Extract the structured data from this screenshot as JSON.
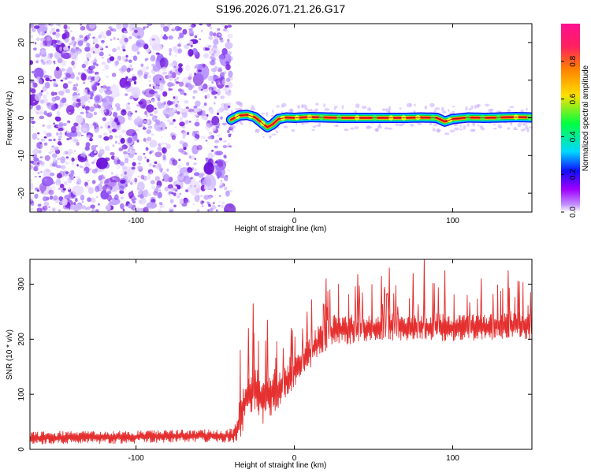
{
  "title": "S196.2026.071.21.26.G17",
  "colors": {
    "scatter_purple": "#7b1fe0",
    "red_trace": "#e53030",
    "colorbar_stops": [
      "#ffffff",
      "#a000ff",
      "#1010ff",
      "#00d8ff",
      "#00ff40",
      "#ffe000",
      "#ff8000",
      "#ff2060",
      "#ff1090"
    ]
  },
  "chart_data": [
    {
      "type": "heatmap",
      "title": "S196.2026.071.21.26.G17",
      "xlabel": "Height of straight line (km)",
      "ylabel": "Frequency (Hz)",
      "xlim": [
        -167,
        150
      ],
      "ylim": [
        -25,
        25
      ],
      "xticks": [
        -100,
        0,
        100
      ],
      "xtick_labels": [
        "-100",
        "0",
        "100"
      ],
      "yticks": [
        -20,
        -10,
        0,
        10,
        20
      ],
      "ytick_labels": [
        "-20",
        "-10",
        "0",
        "10",
        "20"
      ],
      "noise_region_x": [
        -167,
        -40
      ],
      "signal_track": {
        "x": [
          -40,
          -35,
          -30,
          -25,
          -20,
          -17,
          -14,
          -10,
          -5,
          0,
          10,
          20,
          30,
          40,
          50,
          60,
          70,
          80,
          90,
          95,
          100,
          110,
          120,
          130,
          140,
          150
        ],
        "freq": [
          -0.5,
          0.6,
          0.8,
          0.2,
          -1.5,
          -2.5,
          -1.8,
          -0.3,
          0.1,
          0,
          0.2,
          0.1,
          0,
          0,
          0,
          0,
          0,
          0.1,
          0,
          -1.0,
          -0.3,
          0.1,
          0,
          0.1,
          0.2,
          0.1
        ]
      },
      "colorbar": {
        "label": "Normalized spectral amplitude",
        "range": [
          0,
          1
        ],
        "ticks": [
          0.0,
          0.2,
          0.4,
          0.6,
          0.8
        ],
        "tick_labels": [
          "0.0",
          "0.2",
          "0.4",
          "0.6",
          "0.8"
        ]
      }
    },
    {
      "type": "line",
      "xlabel": "Height of straight line (km)",
      "ylabel": "SNR (10 * v/v)",
      "xlim": [
        -167,
        150
      ],
      "ylim": [
        0,
        345
      ],
      "xticks": [
        -100,
        0,
        100
      ],
      "xtick_labels": [
        "-100",
        "0",
        "100"
      ],
      "yticks": [
        0,
        100,
        200,
        300
      ],
      "ytick_labels": [
        "0",
        "100",
        "200",
        "300"
      ],
      "series": [
        {
          "name": "SNR",
          "x": [
            -167,
            -140,
            -110,
            -80,
            -50,
            -38,
            -34,
            -30,
            -25,
            -20,
            -15,
            -10,
            -5,
            0,
            5,
            10,
            15,
            20,
            25,
            30,
            40,
            50,
            60,
            70,
            80,
            90,
            100,
            110,
            120,
            130,
            140,
            150
          ],
          "y": [
            20,
            22,
            22,
            24,
            25,
            25,
            60,
            95,
            110,
            85,
            105,
            110,
            125,
            145,
            160,
            175,
            195,
            205,
            215,
            218,
            218,
            220,
            222,
            222,
            225,
            222,
            220,
            222,
            222,
            225,
            228,
            222
          ],
          "spread": [
            12,
            12,
            12,
            12,
            12,
            14,
            40,
            40,
            45,
            40,
            45,
            35,
            35,
            35,
            30,
            30,
            30,
            30,
            30,
            30,
            25,
            25,
            25,
            25,
            25,
            25,
            25,
            25,
            25,
            25,
            25,
            25
          ],
          "spike_peaks": [
            {
              "x": -29,
              "y": 220
            },
            {
              "x": -26,
              "y": 265
            },
            {
              "x": -17,
              "y": 235
            },
            {
              "x": -2,
              "y": 220
            },
            {
              "x": 8,
              "y": 250
            },
            {
              "x": 20,
              "y": 310
            },
            {
              "x": 40,
              "y": 318
            },
            {
              "x": 55,
              "y": 315
            },
            {
              "x": 60,
              "y": 330
            },
            {
              "x": 75,
              "y": 320
            },
            {
              "x": 82,
              "y": 345
            },
            {
              "x": 95,
              "y": 325
            },
            {
              "x": 118,
              "y": 310
            },
            {
              "x": 135,
              "y": 325
            },
            {
              "x": 142,
              "y": 305
            }
          ]
        }
      ]
    }
  ]
}
